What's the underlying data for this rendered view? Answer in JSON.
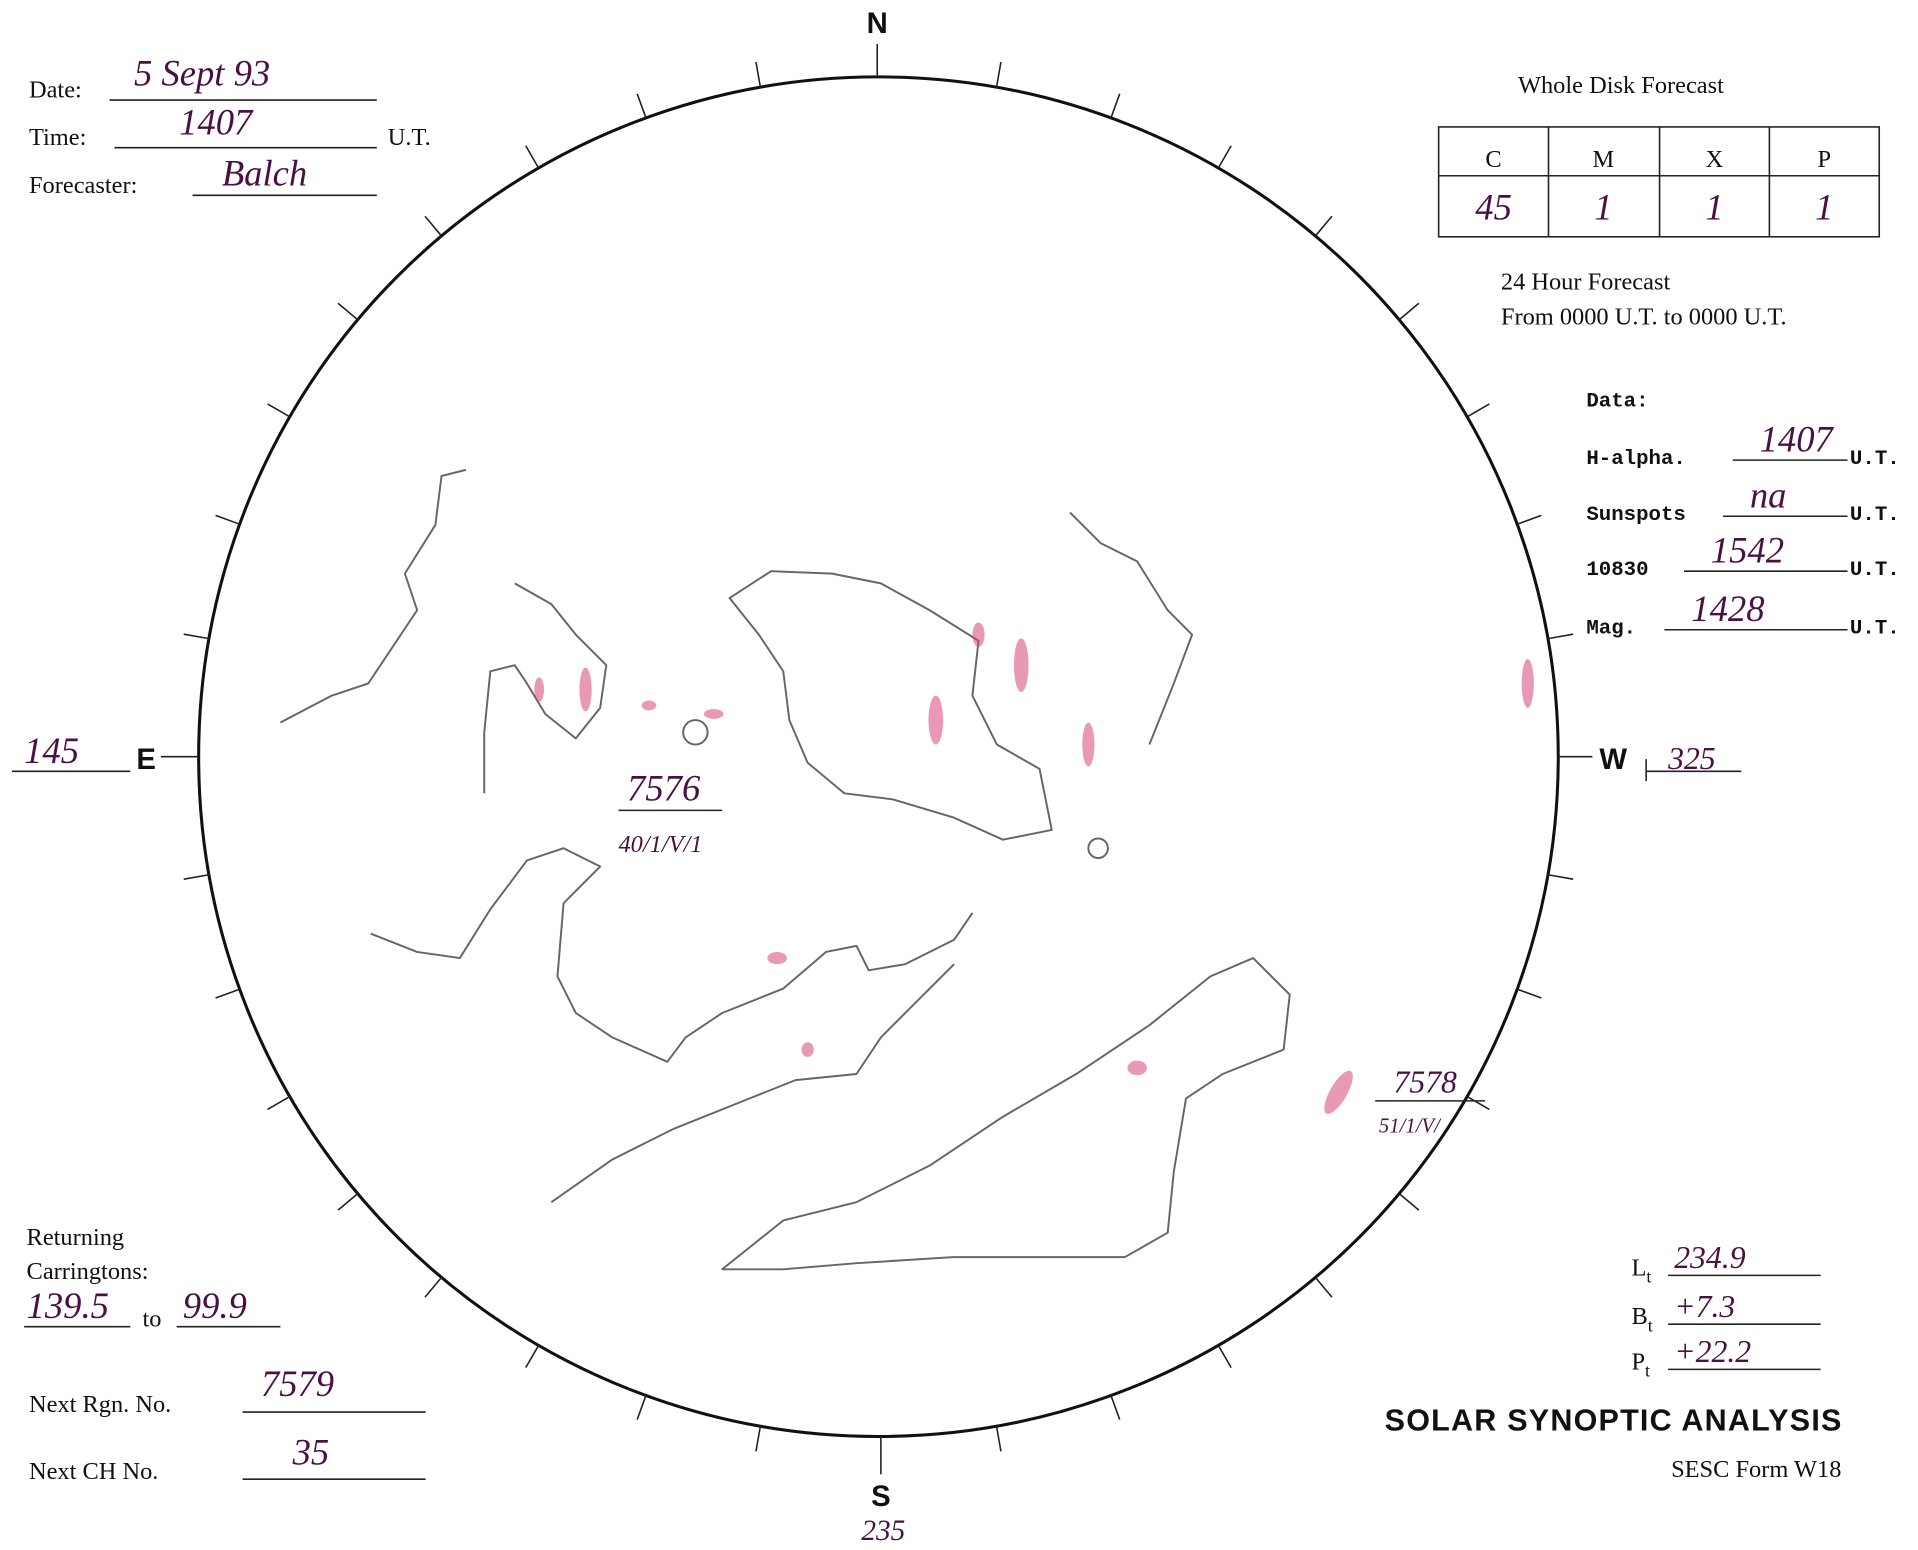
{
  "header": {
    "date_label": "Date:",
    "date": "5 Sept 93",
    "time_label": "Time:",
    "time": "1407",
    "time_unit": "U.T.",
    "forecaster_label": "Forecaster:",
    "forecaster": "Balch"
  },
  "forecast": {
    "title": "Whole Disk Forecast",
    "columns": [
      "C",
      "M",
      "X",
      "P"
    ],
    "values": [
      "45",
      "1",
      "1",
      "1"
    ],
    "period_title": "24 Hour Forecast",
    "period": "From 0000 U.T. to 0000 U.T."
  },
  "data_section": {
    "title": "Data:",
    "rows": [
      {
        "label": "H-alpha.",
        "value": "1407",
        "unit": "U.T."
      },
      {
        "label": "Sunspots",
        "value": "na",
        "unit": "U.T."
      },
      {
        "label": "10830",
        "value": "1542",
        "unit": "U.T."
      },
      {
        "label": "Mag.",
        "value": "1428",
        "unit": "U.T."
      }
    ]
  },
  "compass": {
    "north": "N",
    "south": "S",
    "east": "E",
    "west": "W",
    "east_longitude": "145",
    "west_longitude": "325",
    "south_longitude": "235"
  },
  "regions": [
    {
      "number": "7576",
      "code": "40/1/V/1"
    },
    {
      "number": "7578",
      "code": "51/1/V/"
    }
  ],
  "carringtons": {
    "label_line1": "Returning",
    "label_line2": "Carringtons:",
    "from": "139.5",
    "to_label": "to",
    "to": "99.9"
  },
  "next_numbers": {
    "region_label": "Next Rgn. No.",
    "region": "7579",
    "ch_label": "Next CH No.",
    "ch": "35"
  },
  "angles": [
    {
      "symbol": "L",
      "sub": "t",
      "value": "234.9"
    },
    {
      "symbol": "B",
      "sub": "t",
      "value": "+7.3"
    },
    {
      "symbol": "P",
      "sub": "t",
      "value": "+22.2"
    }
  ],
  "footer": {
    "title": "SOLAR SYNOPTIC ANALYSIS",
    "form": "SESC Form W18"
  }
}
